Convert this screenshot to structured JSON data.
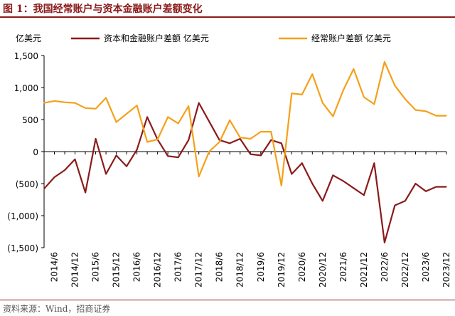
{
  "header": {
    "title": "图 1：我国经常账户与资本金融账户差额变化",
    "source": "资料来源：Wind，招商证券"
  },
  "chart_data": {
    "type": "line",
    "ylabel": "亿美元",
    "ylim": [
      -1500,
      1500
    ],
    "yticks": [
      1500,
      1000,
      500,
      0,
      -500,
      -1000,
      -1500
    ],
    "ytick_labels": [
      "1,500",
      "1,000",
      "500",
      "0",
      "(500)",
      "(1,000)",
      "(1,500)"
    ],
    "grid": false,
    "legend_position": "top",
    "x": [
      "2014/3",
      "2014/6",
      "2014/9",
      "2014/12",
      "2015/3",
      "2015/6",
      "2015/9",
      "2015/12",
      "2016/3",
      "2016/6",
      "2016/9",
      "2016/12",
      "2017/3",
      "2017/6",
      "2017/9",
      "2017/12",
      "2018/3",
      "2018/6",
      "2018/9",
      "2018/12",
      "2019/3",
      "2019/6",
      "2019/9",
      "2019/12",
      "2020/3",
      "2020/6",
      "2020/9",
      "2020/12",
      "2021/3",
      "2021/6",
      "2021/9",
      "2021/12",
      "2022/3",
      "2022/6",
      "2022/9",
      "2022/12",
      "2023/3",
      "2023/6",
      "2023/9",
      "2023/12"
    ],
    "xtick_labels": [
      "2014/6",
      "2014/12",
      "2015/6",
      "2015/12",
      "2016/6",
      "2016/12",
      "2017/6",
      "2017/12",
      "2018/6",
      "2018/12",
      "2019/6",
      "2019/12",
      "2020/6",
      "2020/12",
      "2021/6",
      "2021/12",
      "2022/6",
      "2022/12",
      "2023/6",
      "2023/12"
    ],
    "series": [
      {
        "name": "资本和金融账户差额 亿美元",
        "color": "#8B1A1A",
        "values": [
          -580,
          -400,
          -290,
          -120,
          -640,
          200,
          -350,
          -60,
          -230,
          30,
          540,
          190,
          -70,
          -90,
          180,
          760,
          470,
          180,
          130,
          200,
          -40,
          -60,
          180,
          130,
          -350,
          -180,
          -500,
          -770,
          -370,
          -460,
          -570,
          -680,
          -180,
          -1420,
          -840,
          -770,
          -500,
          -620,
          -550,
          -550
        ]
      },
      {
        "name": "经常账户差额 亿美元",
        "color": "#F5A01A",
        "values": [
          760,
          790,
          770,
          760,
          680,
          670,
          840,
          460,
          590,
          720,
          150,
          190,
          540,
          440,
          710,
          -390,
          0,
          150,
          490,
          220,
          200,
          310,
          310,
          -530,
          910,
          890,
          1210,
          760,
          550,
          960,
          1290,
          850,
          740,
          1400,
          1030,
          820,
          650,
          630,
          560,
          560
        ]
      }
    ]
  }
}
